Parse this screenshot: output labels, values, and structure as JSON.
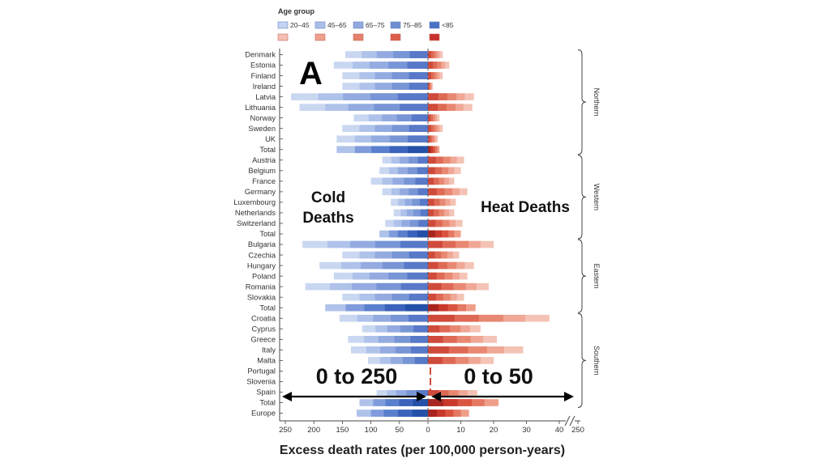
{
  "legend": {
    "title": "Age group",
    "labels": [
      "20–45",
      "45–65",
      "65–75",
      "75–85",
      "<85"
    ],
    "cold_colors": [
      "#c3d3ef",
      "#a9c0ea",
      "#91a9df",
      "#6f8fd3",
      "#4a72c6"
    ],
    "heat_colors": [
      "#f3c0b3",
      "#eea08e",
      "#e5806b",
      "#dd5e4a",
      "#c7322a"
    ]
  },
  "panel_label": "A",
  "annotations": {
    "cold": "Cold Deaths",
    "cold_line1": "Cold",
    "cold_line2": "Deaths",
    "heat": "Heat Deaths",
    "cold_range": "0 to 250",
    "heat_range": "0 to 50"
  },
  "chart_data": {
    "type": "bar",
    "orientation": "horizontal",
    "diverging": true,
    "xlabel": "Excess death rates (per 100,000 person-years)",
    "left_axis": {
      "label": "Cold",
      "ticks": [
        250,
        200,
        150,
        100,
        50,
        0
      ],
      "range": [
        0,
        250
      ]
    },
    "right_axis": {
      "label": "Heat",
      "ticks": [
        0,
        10,
        20,
        30,
        40
      ],
      "break_tick": 250,
      "range": [
        0,
        50
      ]
    },
    "regions": [
      {
        "name": "Northern",
        "countries": [
          "Denmark",
          "Estonia",
          "Finland",
          "Ireland",
          "Latvia",
          "Lithuania",
          "Norway",
          "Sweden",
          "UK",
          "Total"
        ]
      },
      {
        "name": "Western",
        "countries": [
          "Austria",
          "Belgium",
          "France",
          "Germany",
          "Luxembourg",
          "Netherlands",
          "Switzerland",
          "Total"
        ]
      },
      {
        "name": "Eastern",
        "countries": [
          "Bulgaria",
          "Czechia",
          "Hungary",
          "Poland",
          "Romania",
          "Slovakia",
          "Total"
        ]
      },
      {
        "name": "Southern",
        "countries": [
          "Croatia",
          "Cyprus",
          "Greece",
          "Italy",
          "Malta",
          "Portugal",
          "Slovenia",
          "Spain",
          "Total"
        ]
      }
    ],
    "categories": [
      "Denmark",
      "Estonia",
      "Finland",
      "Ireland",
      "Latvia",
      "Lithuania",
      "Norway",
      "Sweden",
      "UK",
      "Total",
      "Austria",
      "Belgium",
      "France",
      "Germany",
      "Luxembourg",
      "Netherlands",
      "Switzerland",
      "Total",
      "Bulgaria",
      "Czechia",
      "Hungary",
      "Poland",
      "Romania",
      "Slovakia",
      "Total",
      "Croatia",
      "Cyprus",
      "Greece",
      "Italy",
      "Malta",
      "Portugal",
      "Slovenia",
      "Spain",
      "Total",
      "Europe"
    ],
    "cold_values": [
      145,
      165,
      150,
      150,
      240,
      225,
      130,
      150,
      160,
      160,
      80,
      85,
      100,
      80,
      65,
      60,
      75,
      85,
      220,
      150,
      190,
      165,
      215,
      150,
      180,
      155,
      115,
      140,
      135,
      105,
      120,
      135,
      90,
      120,
      125
    ],
    "heat_values": [
      4.5,
      6.5,
      4.5,
      1.5,
      14,
      13.5,
      3.5,
      4.5,
      3,
      3.5,
      11,
      10,
      8,
      12,
      8.5,
      8,
      10.5,
      10,
      20,
      9.5,
      14,
      12,
      18.5,
      11,
      14.5,
      37,
      16,
      21,
      29,
      20,
      15,
      19,
      15,
      21.5,
      12.5
    ]
  }
}
